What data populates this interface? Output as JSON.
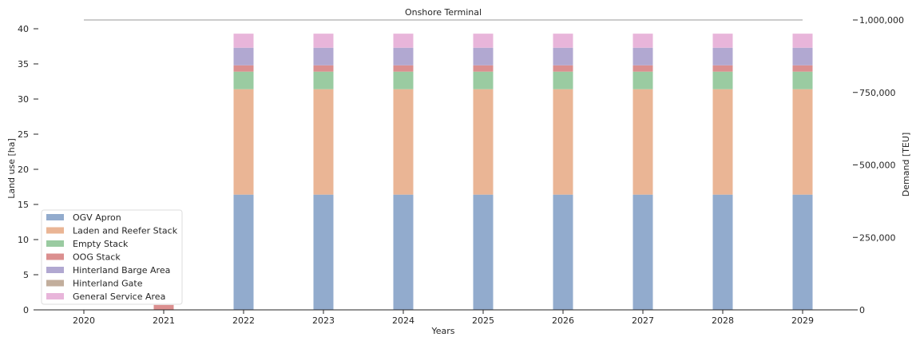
{
  "chart_data": {
    "type": "bar",
    "stacked": true,
    "title": "Onshore Terminal",
    "xlabel": "Years",
    "ylabel": "Land use [ha]",
    "ylabel_right": "Demand [TEU]",
    "categories": [
      "2020",
      "2021",
      "2022",
      "2023",
      "2024",
      "2025",
      "2026",
      "2027",
      "2028",
      "2029"
    ],
    "ylim": [
      0,
      40
    ],
    "yticks": [
      0,
      5,
      10,
      15,
      20,
      25,
      30,
      35,
      40
    ],
    "ylim_right": [
      0,
      1000000
    ],
    "yticks_right": [
      0,
      250000,
      500000,
      750000,
      1000000
    ],
    "yticks_right_labels": [
      "0",
      "250,000",
      "500,000",
      "750,000",
      "1,000,000"
    ],
    "legend_position": "lower-left",
    "grid": false,
    "series": [
      {
        "name": "OGV Apron",
        "color": "#92abcd",
        "values": [
          0,
          0,
          16.4,
          16.4,
          16.4,
          16.4,
          16.4,
          16.4,
          16.4,
          16.4
        ]
      },
      {
        "name": "Laden and Reefer Stack",
        "color": "#eab595",
        "values": [
          0,
          0,
          15.0,
          15.0,
          15.0,
          15.0,
          15.0,
          15.0,
          15.0,
          15.0
        ]
      },
      {
        "name": "Empty Stack",
        "color": "#9acba1",
        "values": [
          0,
          0,
          2.5,
          2.5,
          2.5,
          2.5,
          2.5,
          2.5,
          2.5,
          2.5
        ]
      },
      {
        "name": "OOG Stack",
        "color": "#db8f8f",
        "values": [
          0,
          0.7,
          0.9,
          0.9,
          0.9,
          0.9,
          0.9,
          0.9,
          0.9,
          0.9
        ]
      },
      {
        "name": "Hinterland Barge Area",
        "color": "#b1a8d1",
        "values": [
          0,
          0,
          2.5,
          2.5,
          2.5,
          2.5,
          2.5,
          2.5,
          2.5,
          2.5
        ]
      },
      {
        "name": "Hinterland Gate",
        "color": "#c2ae9c",
        "values": [
          0,
          0,
          0,
          0,
          0,
          0,
          0,
          0,
          0,
          0
        ]
      },
      {
        "name": "General Service Area",
        "color": "#e8b5da",
        "values": [
          0,
          0,
          2.0,
          2.0,
          2.0,
          2.0,
          2.0,
          2.0,
          2.0,
          2.0
        ]
      }
    ],
    "demand_line": {
      "color": "#999999",
      "x_start": "2020",
      "x_end": "2029",
      "value": 1000000
    }
  }
}
